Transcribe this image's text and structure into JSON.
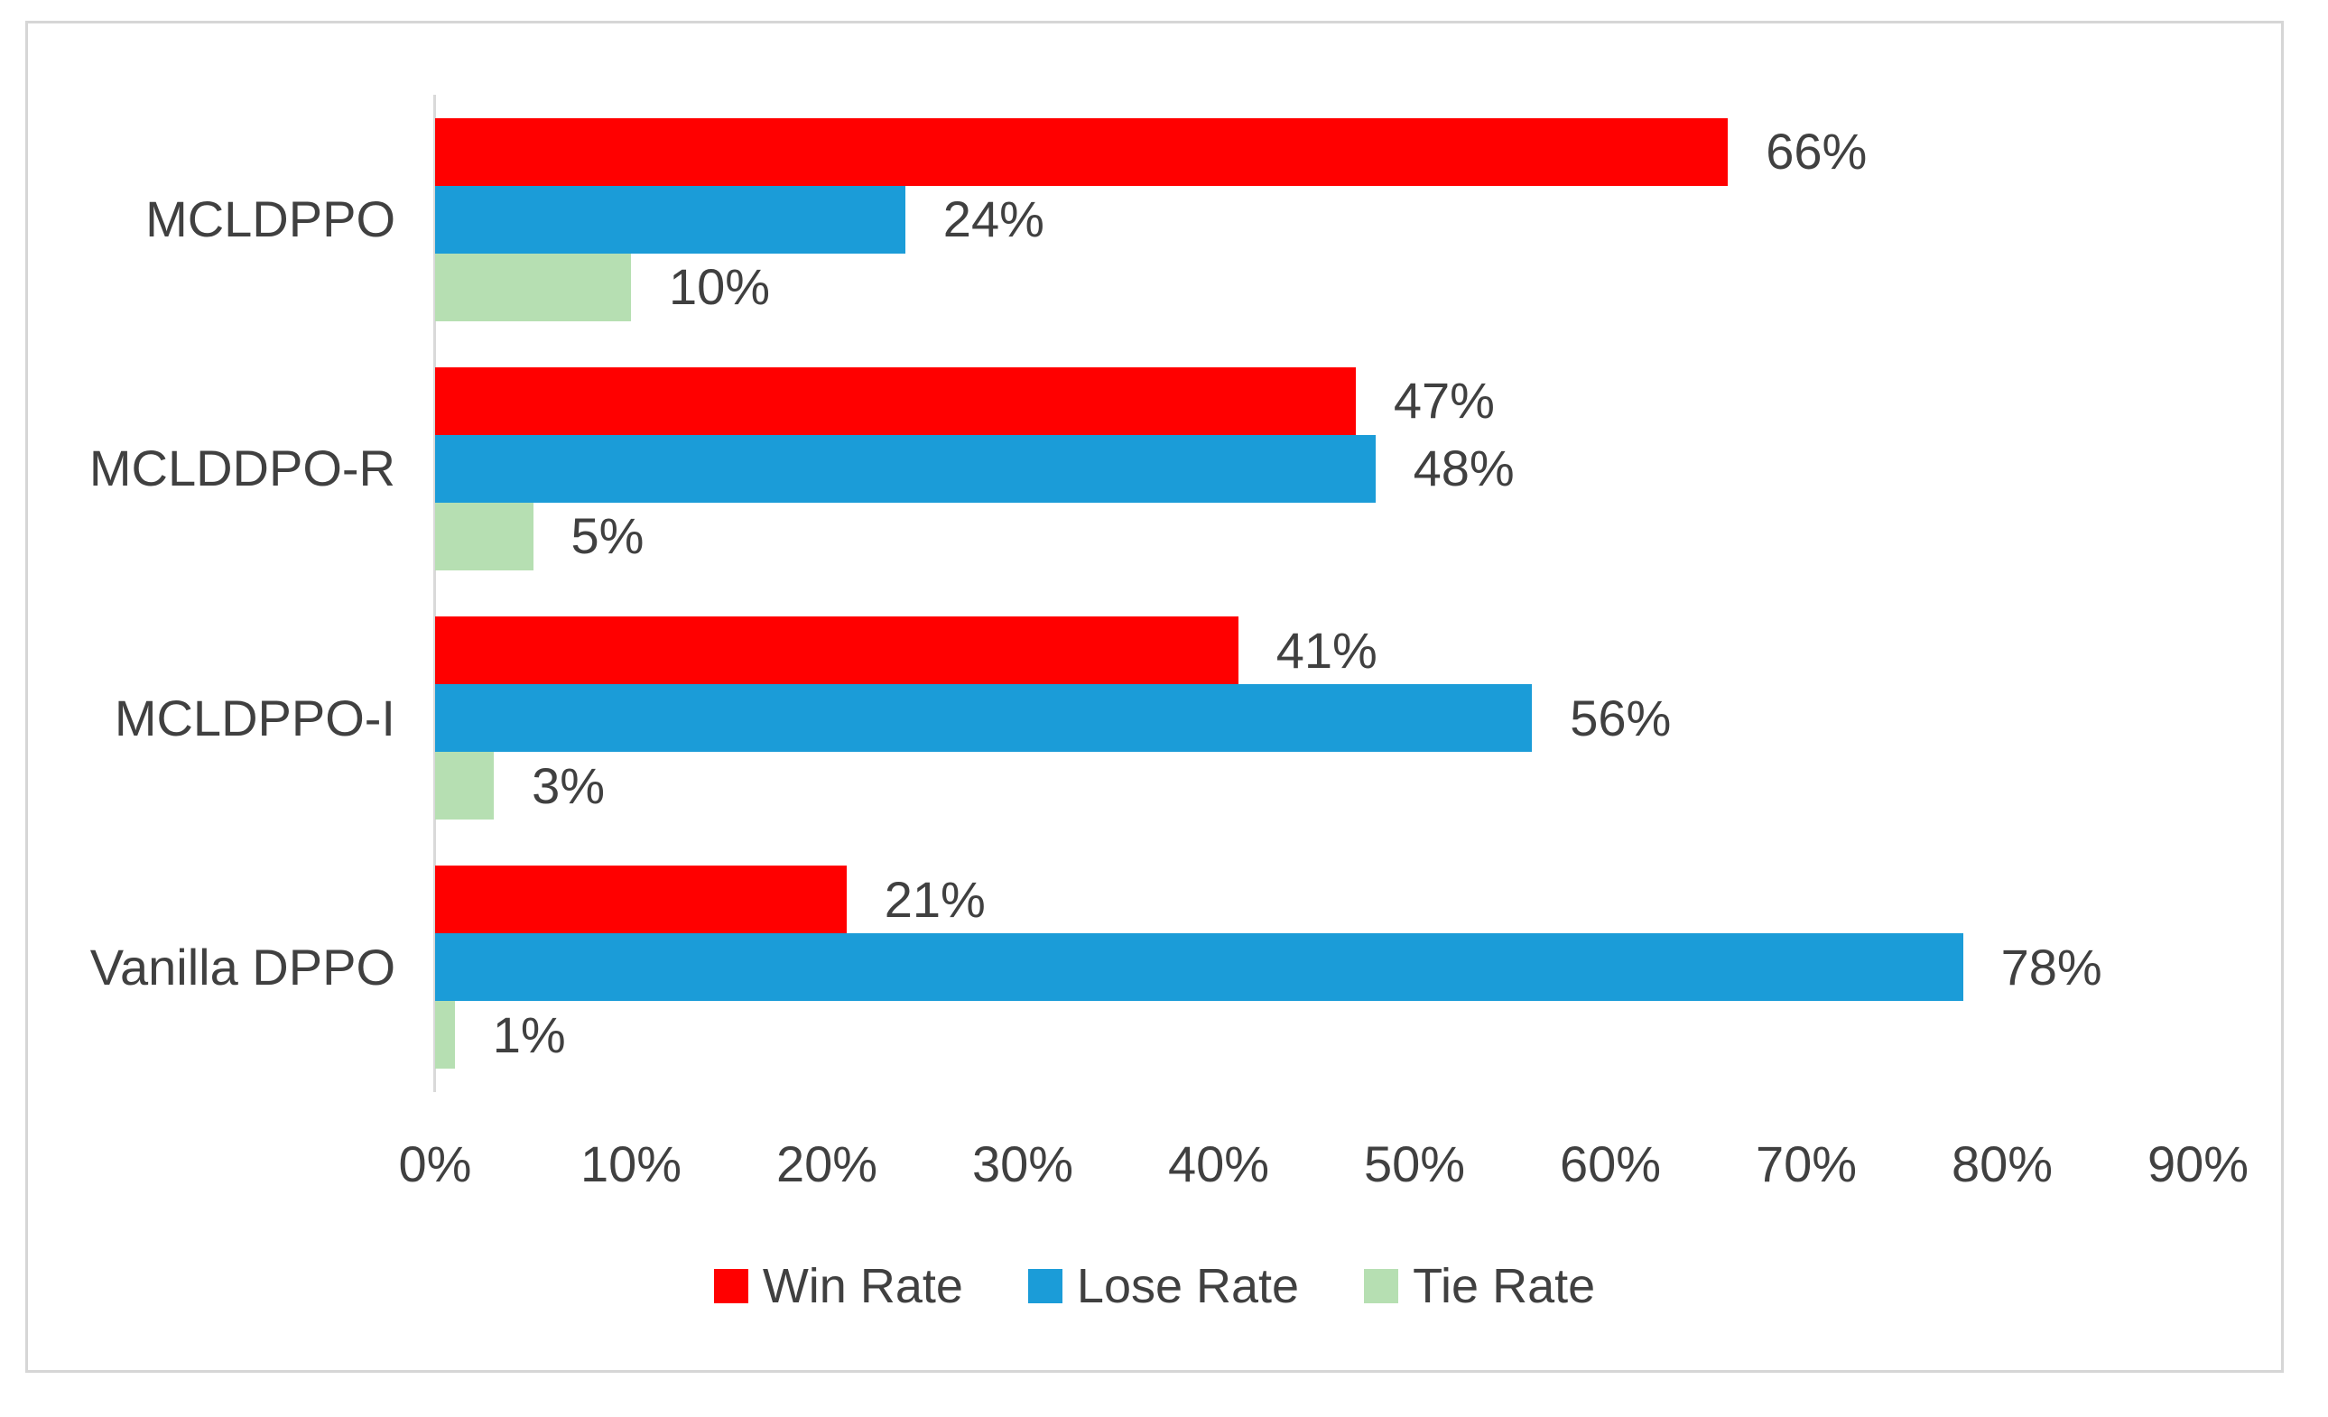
{
  "chart_data": {
    "type": "bar",
    "orientation": "horizontal",
    "title": "",
    "categories": [
      "MCLDPPO",
      "MCLDDPO-R",
      "MCLDPPO-I",
      "Vanilla DPPO"
    ],
    "series": [
      {
        "name": "Win Rate",
        "color": "#ff0000",
        "values": [
          66,
          47,
          41,
          21
        ],
        "data_labels": [
          "66%",
          "47%",
          "41%",
          "21%"
        ]
      },
      {
        "name": "Lose Rate",
        "color": "#1b9cd8",
        "values": [
          24,
          48,
          56,
          78
        ],
        "data_labels": [
          "24%",
          "48%",
          "56%",
          "78%"
        ]
      },
      {
        "name": "Tie Rate",
        "color": "#b6dfb2",
        "values": [
          10,
          5,
          3,
          1
        ],
        "data_labels": [
          "10%",
          "5%",
          "3%",
          "1%"
        ]
      }
    ],
    "x_axis": {
      "min": 0,
      "max": 90,
      "tick_labels": [
        "0%",
        "10%",
        "20%",
        "30%",
        "40%",
        "50%",
        "60%",
        "70%",
        "80%",
        "90%"
      ]
    },
    "legend": {
      "position": "bottom",
      "entries": [
        "Win Rate",
        "Lose Rate",
        "Tie Rate"
      ]
    },
    "grid": false
  },
  "colors": {
    "text": "#404040",
    "axis_line": "#d9d9d9",
    "frame_border": "#d6d6d6",
    "background": "#ffffff"
  }
}
